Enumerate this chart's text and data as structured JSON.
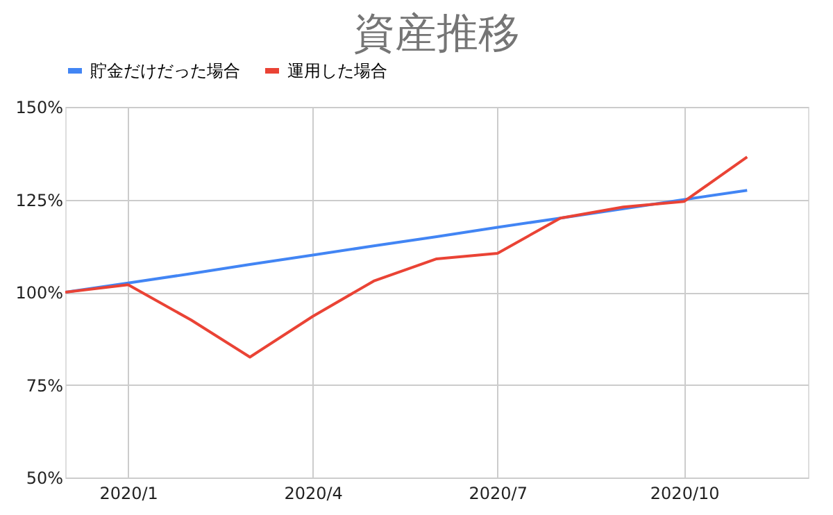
{
  "chart_data": {
    "type": "line",
    "title": "資産推移",
    "x": [
      "2019-12",
      "2020-01",
      "2020-02",
      "2020-03",
      "2020-04",
      "2020-05",
      "2020-06",
      "2020-07",
      "2020-08",
      "2020-09",
      "2020-10",
      "2020-11"
    ],
    "series": [
      {
        "name": "貯金だけだった場合",
        "color": "#4285f4",
        "values": [
          100,
          102.5,
          105,
          107.5,
          110,
          112.5,
          115,
          117.5,
          120,
          122.5,
          125,
          127.5
        ]
      },
      {
        "name": "運用した場合",
        "color": "#ea4335",
        "values": [
          100,
          102,
          92.5,
          82.5,
          93.5,
          103,
          109,
          110.5,
          120,
          123,
          124.5,
          136.5
        ]
      }
    ],
    "xlim": [
      "2019-12",
      "2020-12"
    ],
    "xticks": [
      {
        "value": "2020-01",
        "label": "2020/1"
      },
      {
        "value": "2020-04",
        "label": "2020/4"
      },
      {
        "value": "2020-07",
        "label": "2020/7"
      },
      {
        "value": "2020-10",
        "label": "2020/10"
      }
    ],
    "ylim": [
      50,
      150
    ],
    "yticks": [
      {
        "value": 50,
        "label": "50%"
      },
      {
        "value": 75,
        "label": "75%"
      },
      {
        "value": 100,
        "label": "100%"
      },
      {
        "value": 125,
        "label": "125%"
      },
      {
        "value": 150,
        "label": "150%"
      }
    ],
    "grid": true,
    "legend": "top",
    "marker": "none",
    "line_style": "solid"
  }
}
